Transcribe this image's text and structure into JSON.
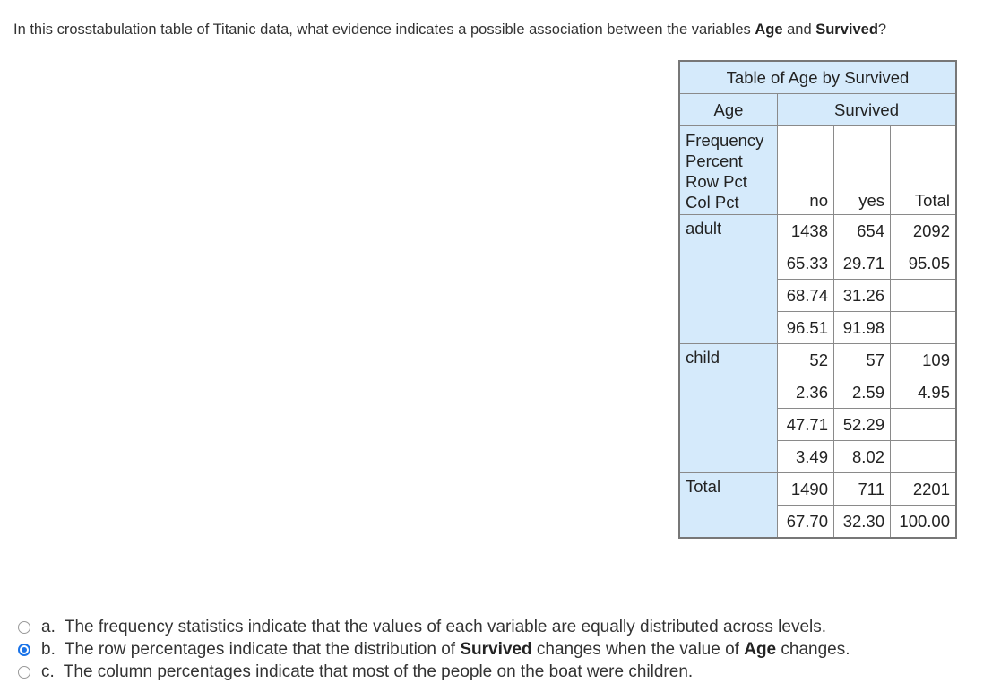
{
  "question": {
    "prefix": "In this crosstabulation table of Titanic data, what evidence indicates a possible association between the variables ",
    "var1": "Age",
    "mid": " and ",
    "var2": "Survived",
    "suffix": "?"
  },
  "table": {
    "title": "Table of Age by Survived",
    "row_var": "Age",
    "col_var": "Survived",
    "stub_labels": [
      "Frequency",
      "Percent",
      "Row Pct",
      "Col Pct"
    ],
    "columns": [
      "no",
      "yes",
      "Total"
    ],
    "rows": [
      {
        "label": "adult",
        "frequency": [
          "1438",
          "654",
          "2092"
        ],
        "percent": [
          "65.33",
          "29.71",
          "95.05"
        ],
        "row_pct": [
          "68.74",
          "31.26",
          ""
        ],
        "col_pct": [
          "96.51",
          "91.98",
          ""
        ]
      },
      {
        "label": "child",
        "frequency": [
          "52",
          "57",
          "109"
        ],
        "percent": [
          "2.36",
          "2.59",
          "4.95"
        ],
        "row_pct": [
          "47.71",
          "52.29",
          ""
        ],
        "col_pct": [
          "3.49",
          "8.02",
          ""
        ]
      }
    ],
    "total": {
      "label": "Total",
      "frequency": [
        "1490",
        "711",
        "2201"
      ],
      "percent": [
        "67.70",
        "32.30",
        "100.00"
      ]
    }
  },
  "options": [
    {
      "letter": "a.",
      "text": "The frequency statistics indicate that the values of each variable are equally distributed across levels.",
      "selected": false
    },
    {
      "letter": "b.",
      "text_before": "The row percentages indicate that the distribution of ",
      "bold1": "Survived",
      "text_mid": " changes when the value of ",
      "bold2": "Age",
      "text_after": " changes.",
      "selected": true
    },
    {
      "letter": "c.",
      "text": "The column percentages indicate that most of the people on the boat were children.",
      "selected": false
    }
  ],
  "colors": {
    "header_bg": "#d5eafb",
    "radio_selected": "#1a73e8"
  }
}
